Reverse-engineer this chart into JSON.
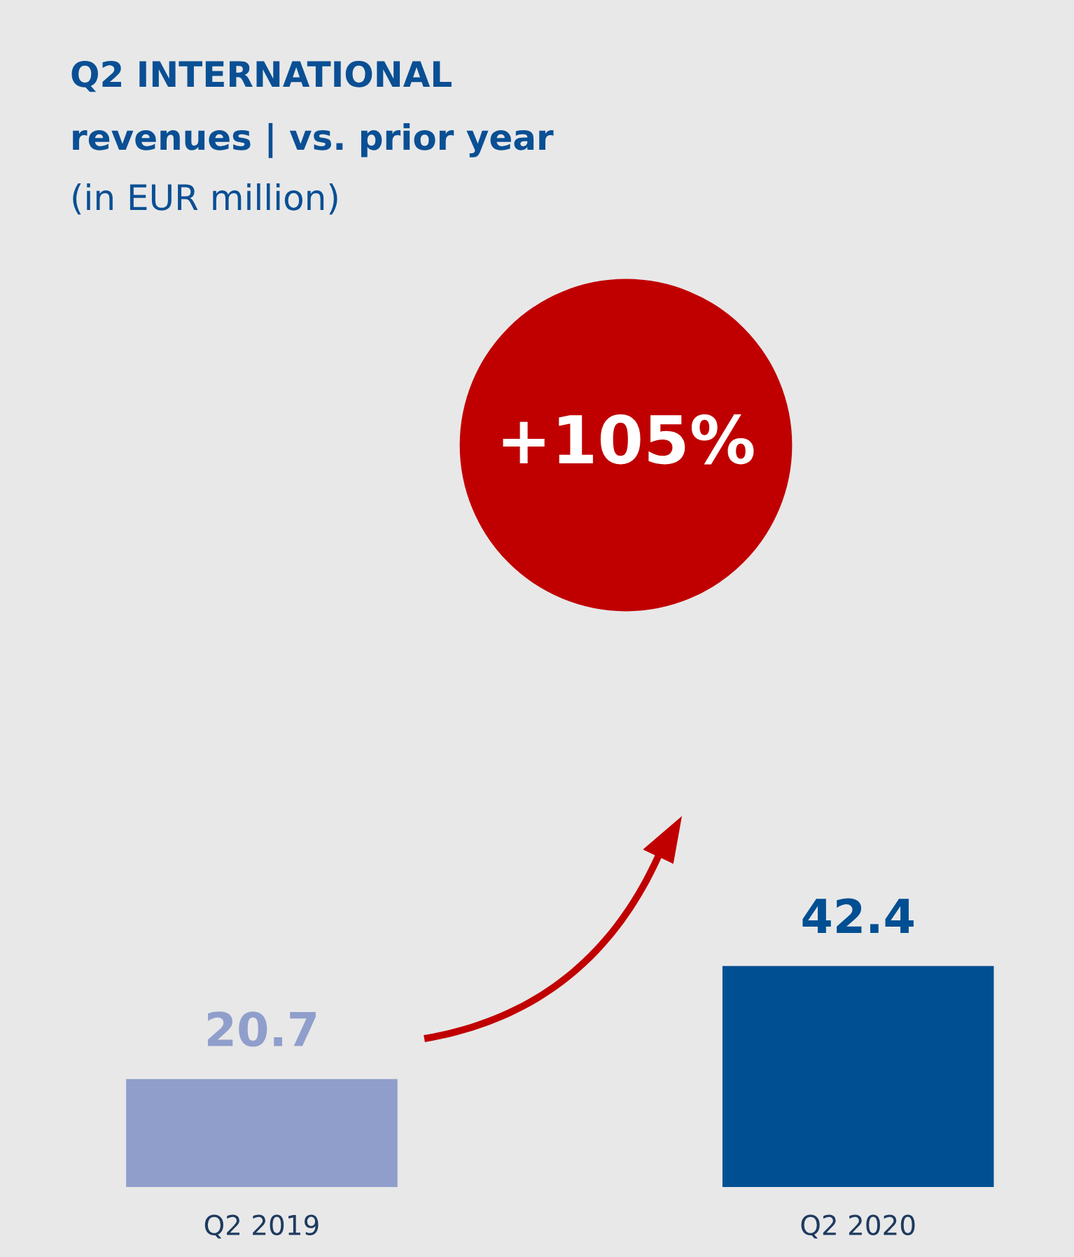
{
  "chart_data": {
    "type": "bar",
    "title": "Q2 INTERNATIONAL",
    "subtitle": "revenues | vs. prior year",
    "annotations": [
      "(in EUR million)",
      "+105%"
    ],
    "categories": [
      "Q2 2019",
      "Q2 2020"
    ],
    "values": [
      20.7,
      42.4
    ],
    "colors": [
      "#8f9ecb",
      "#004f93"
    ],
    "data_labels": true,
    "grid": false
  }
}
